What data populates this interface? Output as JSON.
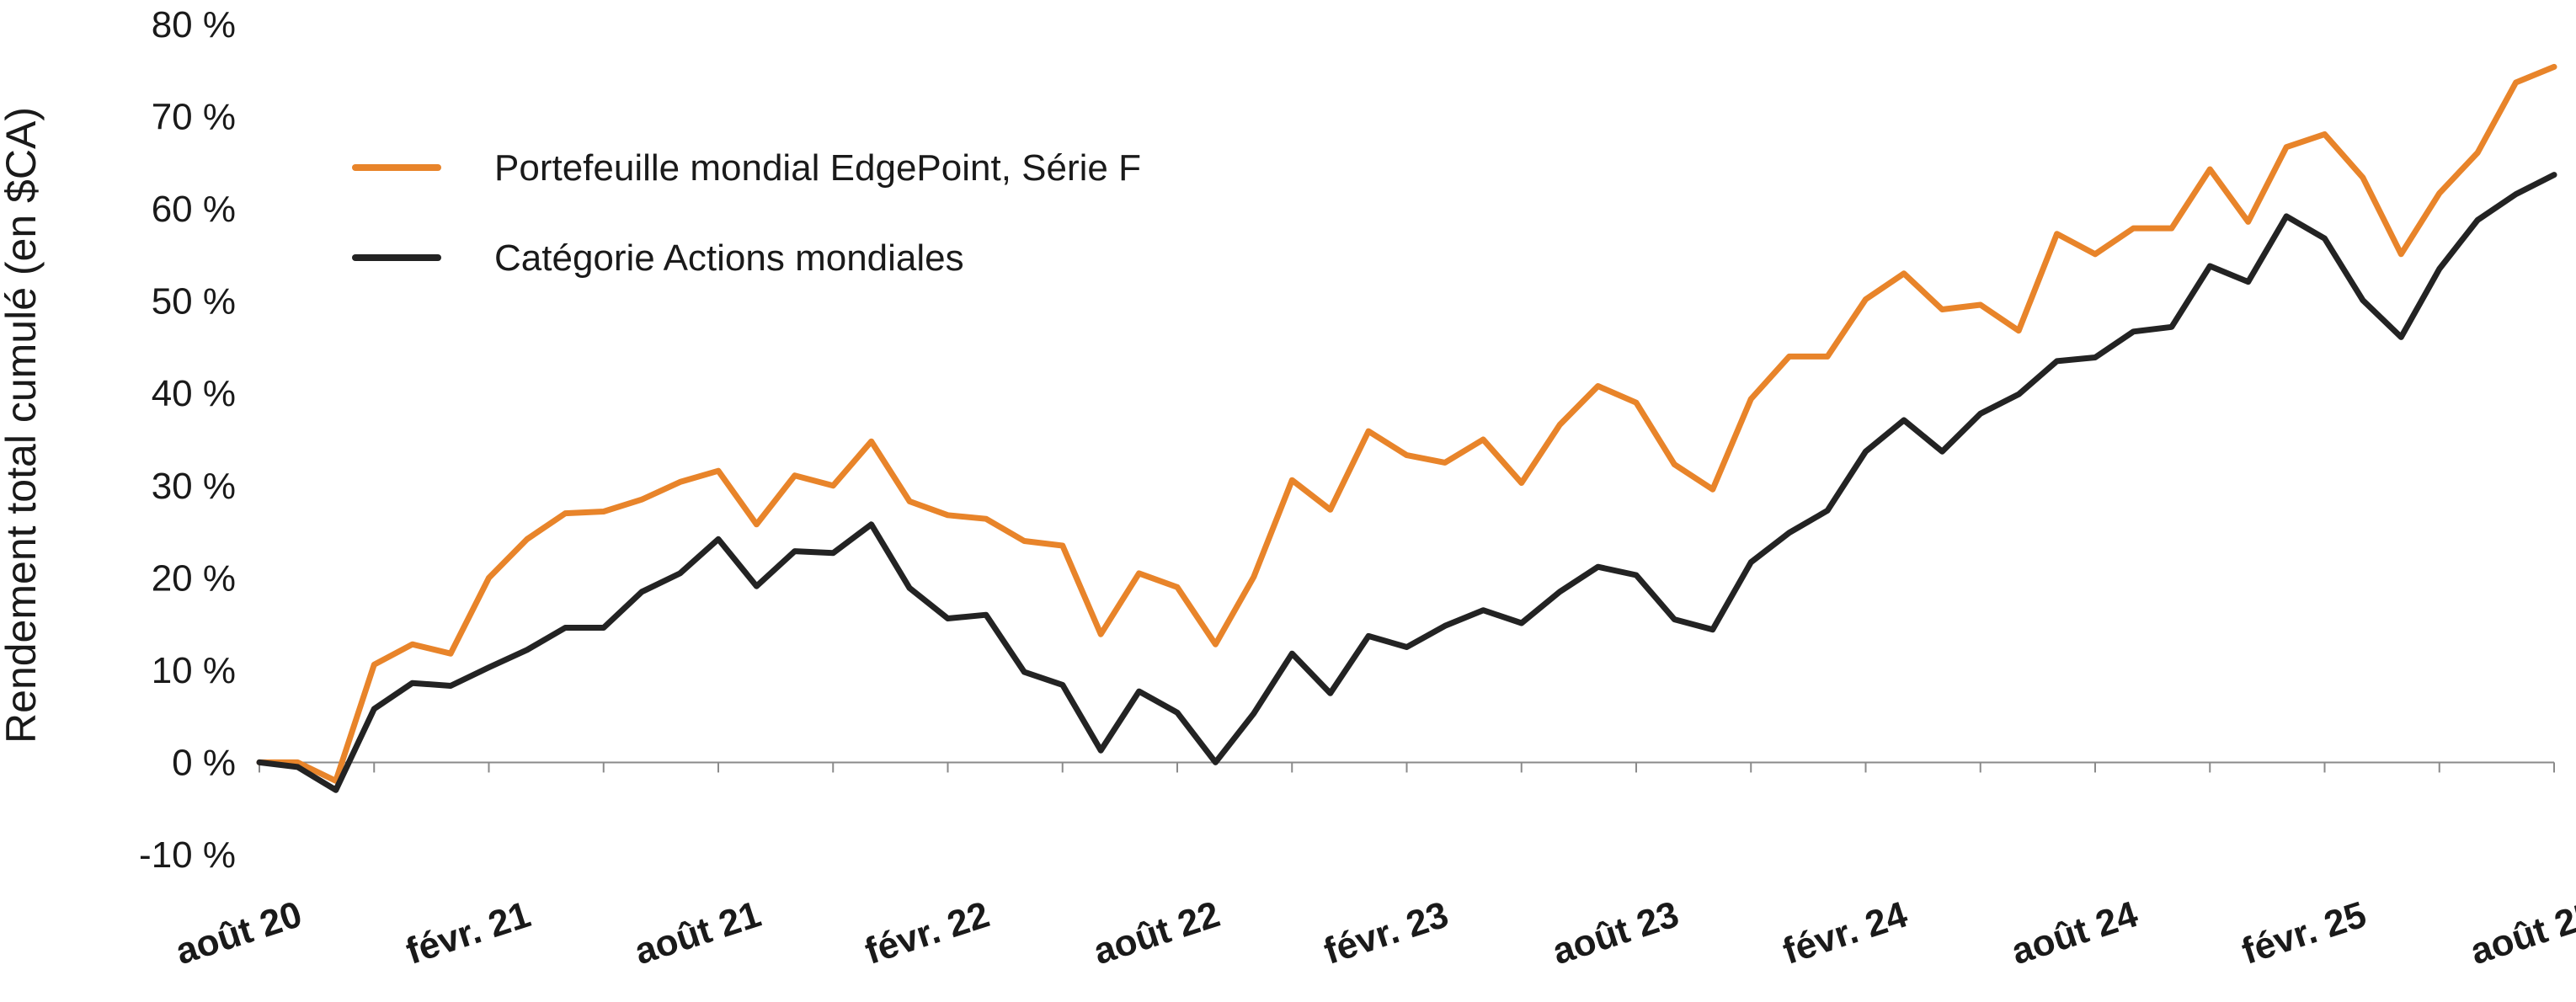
{
  "chart_data": {
    "type": "line",
    "title": "",
    "xlabel": "",
    "ylabel": "Rendement total cumulé (en $CA)",
    "ylim": [
      -10,
      80
    ],
    "yticks": [
      -10,
      0,
      10,
      20,
      30,
      40,
      50,
      60,
      70,
      80
    ],
    "ytick_labels": [
      "-10 %",
      "0 %",
      "10 %",
      "20 %",
      "30 %",
      "40 %",
      "50 %",
      "60 %",
      "70 %",
      "80 %"
    ],
    "grid": false,
    "legend_position": "top-left",
    "x_start": "2020-08",
    "x_end": "2025-08",
    "x_ticks": [
      {
        "month_index": 0,
        "label": "août 20"
      },
      {
        "month_index": 6,
        "label": "févr. 21"
      },
      {
        "month_index": 12,
        "label": "août 21"
      },
      {
        "month_index": 18,
        "label": "févr. 22"
      },
      {
        "month_index": 24,
        "label": "août 22"
      },
      {
        "month_index": 30,
        "label": "févr. 23"
      },
      {
        "month_index": 36,
        "label": "août 23"
      },
      {
        "month_index": 42,
        "label": "févr. 24"
      },
      {
        "month_index": 48,
        "label": "août 24"
      },
      {
        "month_index": 54,
        "label": "févr. 25"
      },
      {
        "month_index": 60,
        "label": "août 25"
      }
    ],
    "series": [
      {
        "name": "Portefeuille mondial EdgePoint, Série F",
        "color": "#E8842A",
        "values": [
          0,
          0,
          -2,
          10.6,
          12.8,
          11.8,
          20,
          24.2,
          27,
          27.2,
          28.5,
          30.4,
          31.6,
          25.8,
          31.1,
          30,
          34.8,
          28.3,
          26.8,
          26.4,
          24,
          23.5,
          13.9,
          20.5,
          19,
          12.8,
          20.1,
          30.6,
          27.4,
          35.9,
          33.3,
          32.5,
          35,
          30.3,
          36.6,
          40.8,
          39,
          32.3,
          29.6,
          39.4,
          44,
          44,
          50.2,
          53,
          49.1,
          49.6,
          46.8,
          57.3,
          55.1,
          57.9,
          57.9,
          64.3,
          58.6,
          66.7,
          68.1,
          63.4,
          55.1,
          61.7,
          66.1,
          73.7,
          75.4
        ]
      },
      {
        "name": "Catégorie Actions mondiales",
        "color": "#232323",
        "values": [
          0,
          -0.5,
          -3,
          5.8,
          8.6,
          8.3,
          10.3,
          12.2,
          14.6,
          14.6,
          18.5,
          20.5,
          24.2,
          19.1,
          22.9,
          22.7,
          25.8,
          18.9,
          15.6,
          16,
          9.8,
          8.4,
          1.3,
          7.7,
          5.4,
          0,
          5.3,
          11.8,
          7.5,
          13.7,
          12.5,
          14.8,
          16.5,
          15.1,
          18.5,
          21.2,
          20.3,
          15.5,
          14.4,
          21.7,
          24.9,
          27.3,
          33.7,
          37.1,
          33.7,
          37.8,
          39.9,
          43.5,
          43.9,
          46.7,
          47.2,
          53.8,
          52.1,
          59.2,
          56.8,
          50.1,
          46.1,
          53.5,
          58.8,
          61.6,
          63.7
        ]
      }
    ]
  }
}
